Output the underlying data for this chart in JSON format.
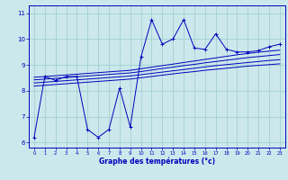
{
  "xlabel": "Graphe des températures (°c)",
  "bg_color": "#cce8ec",
  "grid_color": "#99cccc",
  "line_color": "#0000bb",
  "ylim": [
    5.8,
    11.3
  ],
  "xlim": [
    -0.5,
    23.5
  ],
  "yticks": [
    6,
    7,
    8,
    9,
    10,
    11
  ],
  "xticks": [
    0,
    1,
    2,
    3,
    4,
    5,
    6,
    7,
    8,
    9,
    10,
    11,
    12,
    13,
    14,
    15,
    16,
    17,
    18,
    19,
    20,
    21,
    22,
    23
  ],
  "main_curve": [
    6.2,
    8.55,
    8.4,
    8.55,
    8.55,
    6.5,
    6.2,
    6.5,
    8.1,
    6.6,
    9.3,
    10.75,
    9.8,
    10.0,
    10.75,
    9.65,
    9.6,
    10.2,
    9.6,
    9.5,
    9.5,
    9.55,
    9.7,
    9.8
  ],
  "line1": [
    8.52,
    8.55,
    8.58,
    8.61,
    8.64,
    8.67,
    8.7,
    8.73,
    8.76,
    8.79,
    8.85,
    8.91,
    8.97,
    9.03,
    9.09,
    9.15,
    9.21,
    9.27,
    9.33,
    9.39,
    9.44,
    9.49,
    9.53,
    9.57
  ],
  "line2": [
    8.42,
    8.45,
    8.48,
    8.51,
    8.54,
    8.57,
    8.6,
    8.63,
    8.66,
    8.69,
    8.74,
    8.8,
    8.86,
    8.91,
    8.97,
    9.02,
    9.08,
    9.13,
    9.18,
    9.23,
    9.28,
    9.32,
    9.36,
    9.4
  ],
  "line3": [
    8.3,
    8.33,
    8.36,
    8.39,
    8.42,
    8.45,
    8.48,
    8.51,
    8.54,
    8.57,
    8.62,
    8.67,
    8.72,
    8.77,
    8.82,
    8.87,
    8.92,
    8.97,
    9.01,
    9.05,
    9.09,
    9.13,
    9.17,
    9.2
  ],
  "line4": [
    8.18,
    8.21,
    8.24,
    8.27,
    8.3,
    8.33,
    8.36,
    8.39,
    8.42,
    8.45,
    8.5,
    8.55,
    8.6,
    8.65,
    8.7,
    8.74,
    8.79,
    8.83,
    8.87,
    8.91,
    8.95,
    8.98,
    9.01,
    9.04
  ]
}
